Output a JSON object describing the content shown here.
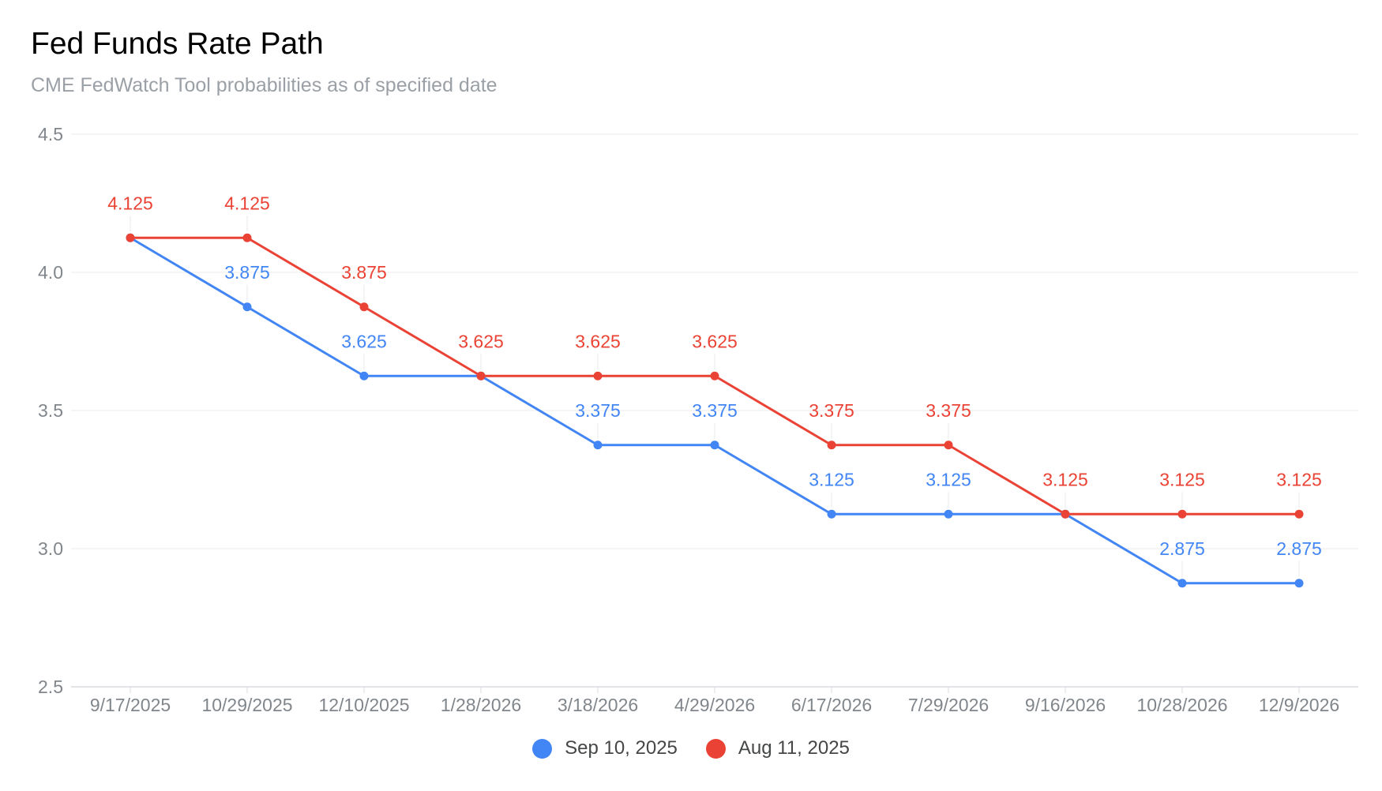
{
  "chart_data": {
    "type": "line",
    "title": "Fed Funds Rate Path",
    "subtitle": "CME FedWatch Tool probabilities as of specified date",
    "xlabel": "",
    "ylabel": "",
    "categories": [
      "9/17/2025",
      "10/29/2025",
      "12/10/2025",
      "1/28/2026",
      "3/18/2026",
      "4/29/2026",
      "6/17/2026",
      "7/29/2026",
      "9/16/2026",
      "10/28/2026",
      "12/9/2026"
    ],
    "ylim": [
      2.5,
      4.5
    ],
    "yticks": [
      "4.5",
      "4.0",
      "3.5",
      "3.0",
      "2.5"
    ],
    "grid": true,
    "legend_position": "bottom",
    "series": [
      {
        "name": "Sep 10, 2025",
        "color": "#4285f4",
        "values": [
          4.125,
          3.875,
          3.625,
          3.625,
          3.375,
          3.375,
          3.125,
          3.125,
          3.125,
          2.875,
          2.875
        ],
        "labels": [
          "",
          "3.875",
          "3.625",
          "",
          "3.375",
          "3.375",
          "3.125",
          "3.125",
          "",
          "2.875",
          "2.875"
        ]
      },
      {
        "name": "Aug 11, 2025",
        "color": "#ea4335",
        "values": [
          4.125,
          4.125,
          3.875,
          3.625,
          3.625,
          3.625,
          3.375,
          3.375,
          3.125,
          3.125,
          3.125
        ],
        "labels": [
          "4.125",
          "4.125",
          "3.875",
          "3.625",
          "3.625",
          "3.625",
          "3.375",
          "3.375",
          "3.125",
          "3.125",
          "3.125"
        ]
      }
    ]
  }
}
